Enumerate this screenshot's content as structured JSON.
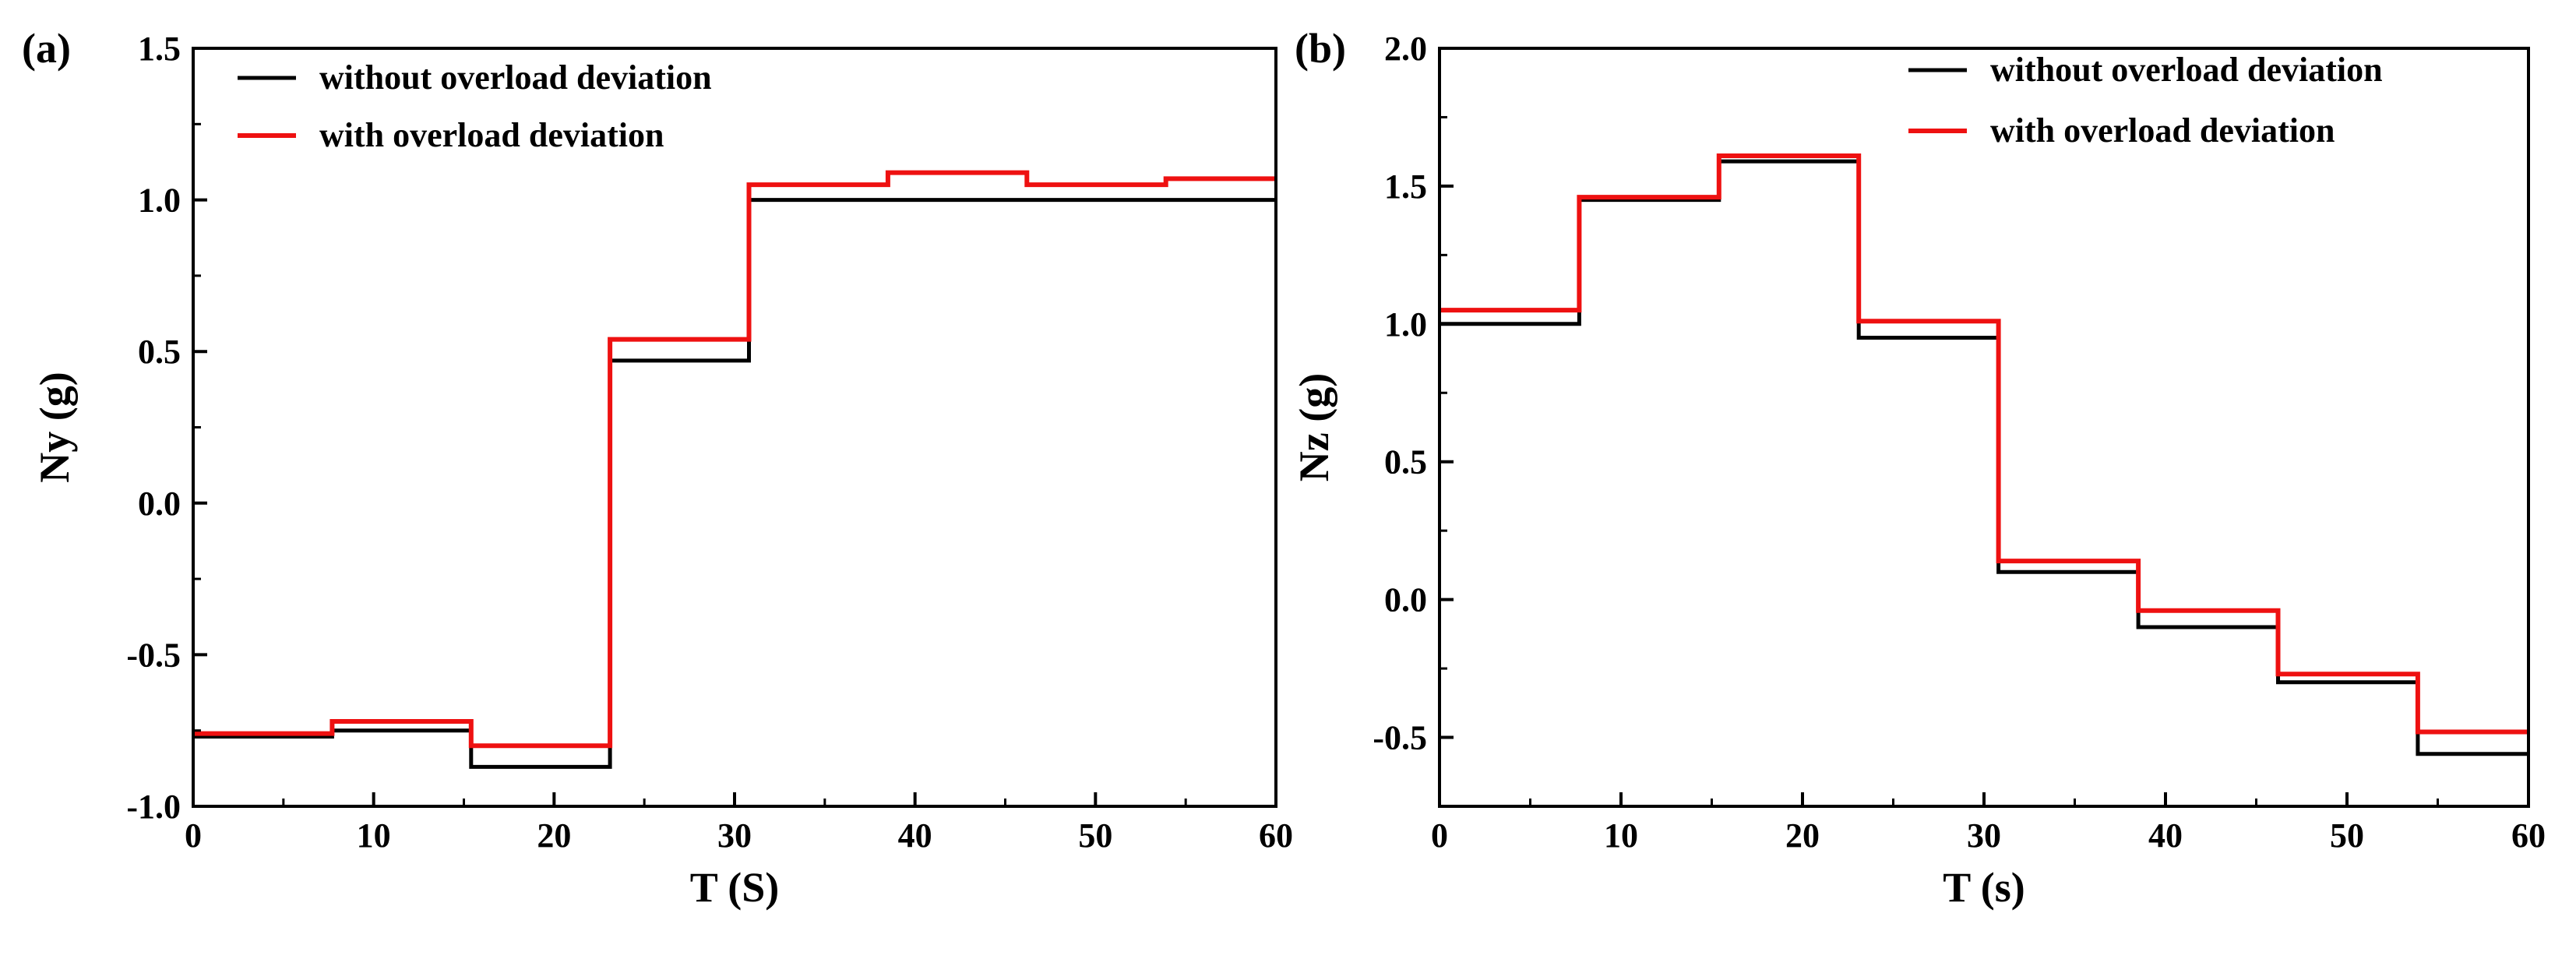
{
  "chart_data": [
    {
      "type": "line",
      "panel_label": "(a)",
      "xlabel": "T (S)",
      "ylabel": "Ny (g)",
      "xlim": [
        0,
        60
      ],
      "ylim": [
        -1.0,
        1.5
      ],
      "xticks": [
        0,
        10,
        20,
        30,
        40,
        50,
        60
      ],
      "xtick_labels": [
        "0",
        "10",
        "20",
        "30",
        "40",
        "50",
        "60"
      ],
      "yticks": [
        -1.0,
        -0.5,
        0.0,
        0.5,
        1.0,
        1.5
      ],
      "ytick_labels": [
        "-1.0",
        "-0.5",
        "0.0",
        "0.5",
        "1.0",
        "1.5"
      ],
      "grid": false,
      "legend_position": "top-left",
      "series": [
        {
          "name": "without overload deviation",
          "color": "#000000",
          "step": true,
          "x": [
            0,
            7.7,
            15.4,
            23.1,
            30.8,
            38.5,
            46.2,
            53.9,
            60
          ],
          "y": [
            -0.77,
            -0.75,
            -0.87,
            0.47,
            1.0,
            1.0,
            1.0,
            1.0,
            1.0
          ]
        },
        {
          "name": "with overload deviation",
          "color": "#ee1111",
          "step": true,
          "x": [
            0,
            7.7,
            15.4,
            23.1,
            30.8,
            38.5,
            46.2,
            53.9,
            60
          ],
          "y": [
            -0.76,
            -0.72,
            -0.8,
            0.54,
            1.05,
            1.09,
            1.05,
            1.07,
            1.07
          ]
        }
      ]
    },
    {
      "type": "line",
      "panel_label": "(b)",
      "xlabel": "T (s)",
      "ylabel": "Nz (g)",
      "xlim": [
        0,
        60
      ],
      "ylim": [
        -0.75,
        2.0
      ],
      "xticks": [
        0,
        10,
        20,
        30,
        40,
        50,
        60
      ],
      "xtick_labels": [
        "0",
        "10",
        "20",
        "30",
        "40",
        "50",
        "60"
      ],
      "yticks": [
        -0.5,
        0.0,
        0.5,
        1.0,
        1.5,
        2.0
      ],
      "ytick_labels": [
        "-0.5",
        "0.0",
        "0.5",
        "1.0",
        "1.5",
        "2.0"
      ],
      "grid": false,
      "legend_position": "top-right",
      "series": [
        {
          "name": "without overload deviation",
          "color": "#000000",
          "step": true,
          "x": [
            0,
            7.7,
            15.4,
            23.1,
            30.8,
            38.5,
            46.2,
            53.9,
            60
          ],
          "y": [
            1.0,
            1.45,
            1.59,
            0.95,
            0.1,
            -0.1,
            -0.3,
            -0.56,
            -0.56
          ]
        },
        {
          "name": "with overload deviation",
          "color": "#ee1111",
          "step": true,
          "x": [
            0,
            7.7,
            15.4,
            23.1,
            30.8,
            38.5,
            46.2,
            53.9,
            60
          ],
          "y": [
            1.05,
            1.46,
            1.61,
            1.01,
            0.14,
            -0.04,
            -0.27,
            -0.48,
            -0.48
          ]
        }
      ]
    }
  ]
}
